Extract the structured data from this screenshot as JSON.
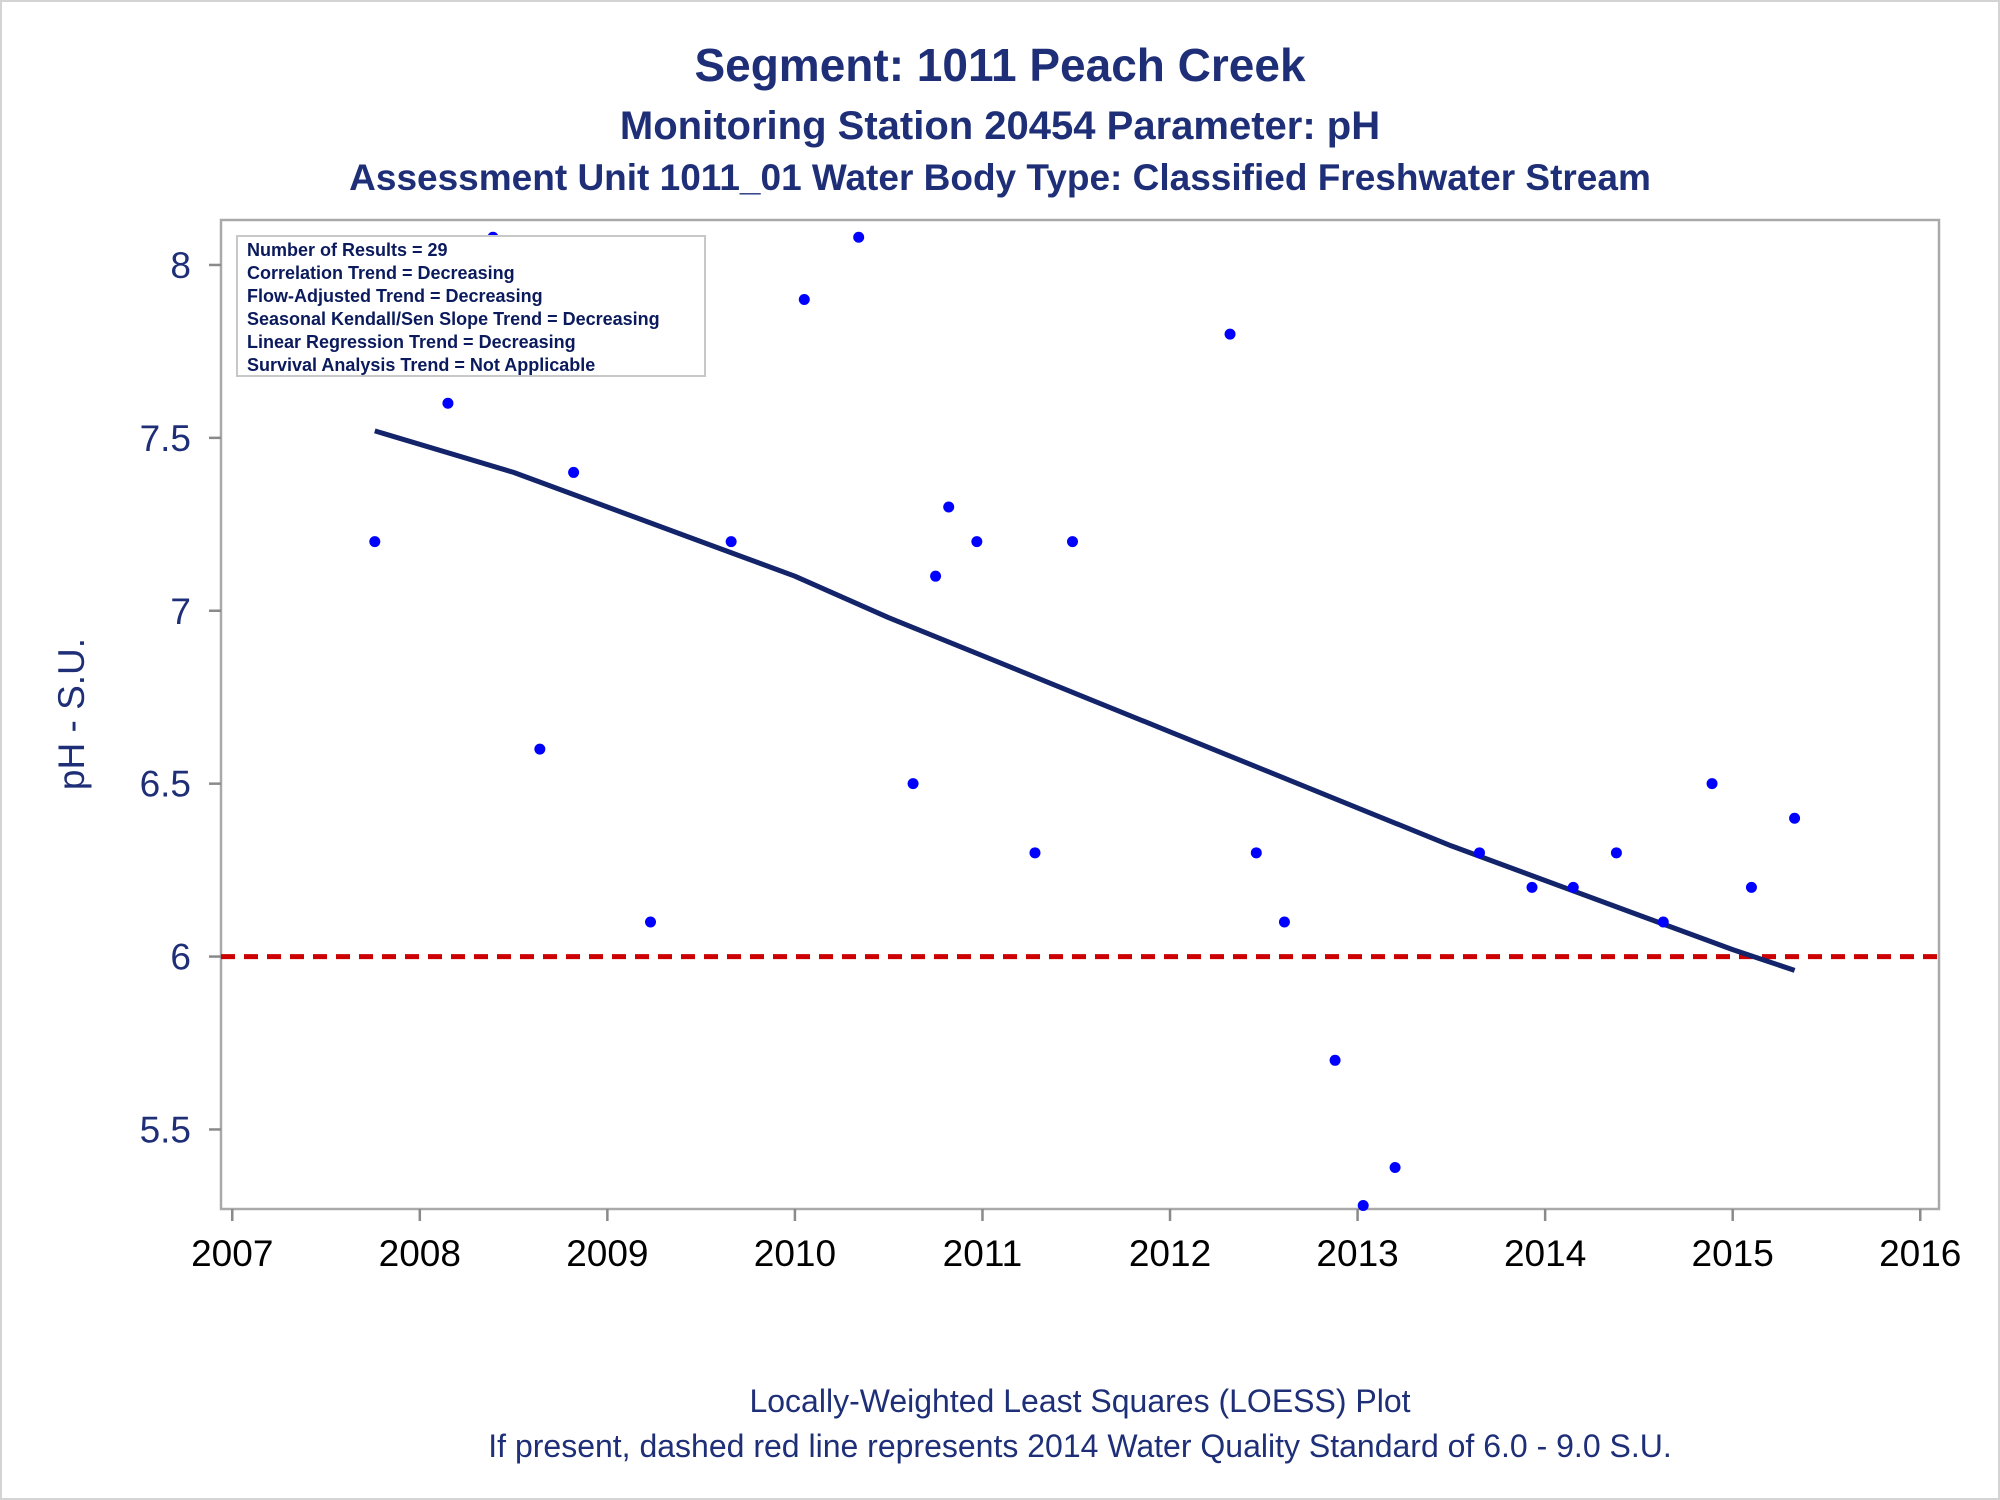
{
  "titles": {
    "line1": "Segment: 1011  Peach Creek",
    "line2": "Monitoring Station 20454 Parameter: pH",
    "line3": "Assessment Unit 1011_01   Water Body Type: Classified Freshwater Stream"
  },
  "stats_box": {
    "lines": [
      "Number of Results = 29",
      "Correlation Trend = Decreasing",
      "Flow-Adjusted Trend = Decreasing",
      "Seasonal Kendall/Sen Slope Trend = Decreasing",
      "Linear Regression Trend = Decreasing",
      "Survival Analysis Trend = Not Applicable"
    ]
  },
  "footnotes": {
    "line1": "Locally-Weighted Least Squares (LOESS) Plot",
    "line2": "If present, dashed red line represents 2014 Water Quality Standard of 6.0 - 9.0 S.U."
  },
  "colors": {
    "points": "#0000ff",
    "loess": "#13246a",
    "standard": "#cc0000",
    "text": "#1e2f78"
  },
  "chart_data": {
    "type": "scatter",
    "ylabel": "pH - S.U.",
    "xlabel": "",
    "xlim": [
      2006.94,
      2016.1
    ],
    "ylim": [
      5.27,
      8.13
    ],
    "x_ticks": [
      2007,
      2008,
      2009,
      2010,
      2011,
      2012,
      2013,
      2014,
      2015,
      2016
    ],
    "y_ticks": [
      5.5,
      6,
      6.5,
      7,
      7.5,
      8
    ],
    "y_tick_labels": [
      "5.5",
      "6",
      "6.5",
      "7",
      "7.5",
      "8"
    ],
    "grid": false,
    "points": [
      [
        2007.76,
        7.2
      ],
      [
        2008.15,
        7.6
      ],
      [
        2008.39,
        8.08
      ],
      [
        2008.64,
        6.6
      ],
      [
        2008.82,
        7.4
      ],
      [
        2009.23,
        6.1
      ],
      [
        2009.66,
        7.2
      ],
      [
        2010.05,
        7.9
      ],
      [
        2010.34,
        8.08
      ],
      [
        2010.63,
        6.5
      ],
      [
        2010.75,
        7.1
      ],
      [
        2010.82,
        7.3
      ],
      [
        2010.97,
        7.2
      ],
      [
        2011.28,
        6.3
      ],
      [
        2011.48,
        7.2
      ],
      [
        2012.32,
        7.8
      ],
      [
        2012.46,
        6.3
      ],
      [
        2012.61,
        6.1
      ],
      [
        2012.88,
        5.7
      ],
      [
        2013.03,
        5.28
      ],
      [
        2013.2,
        5.39
      ],
      [
        2013.65,
        6.3
      ],
      [
        2013.93,
        6.2
      ],
      [
        2014.15,
        6.2
      ],
      [
        2014.38,
        6.3
      ],
      [
        2014.63,
        6.1
      ],
      [
        2014.89,
        6.5
      ],
      [
        2015.1,
        6.2
      ],
      [
        2015.33,
        6.4
      ]
    ],
    "loess_curve": [
      [
        2007.76,
        7.52
      ],
      [
        2008.5,
        7.4
      ],
      [
        2009.0,
        7.3
      ],
      [
        2009.5,
        7.2
      ],
      [
        2010.0,
        7.1
      ],
      [
        2010.5,
        6.98
      ],
      [
        2011.0,
        6.87
      ],
      [
        2011.5,
        6.76
      ],
      [
        2012.0,
        6.65
      ],
      [
        2012.5,
        6.54
      ],
      [
        2013.0,
        6.43
      ],
      [
        2013.5,
        6.32
      ],
      [
        2014.0,
        6.22
      ],
      [
        2014.5,
        6.12
      ],
      [
        2015.0,
        6.02
      ],
      [
        2015.33,
        5.96
      ]
    ],
    "reference_line": {
      "y": 6.0,
      "style": "dashed"
    }
  }
}
